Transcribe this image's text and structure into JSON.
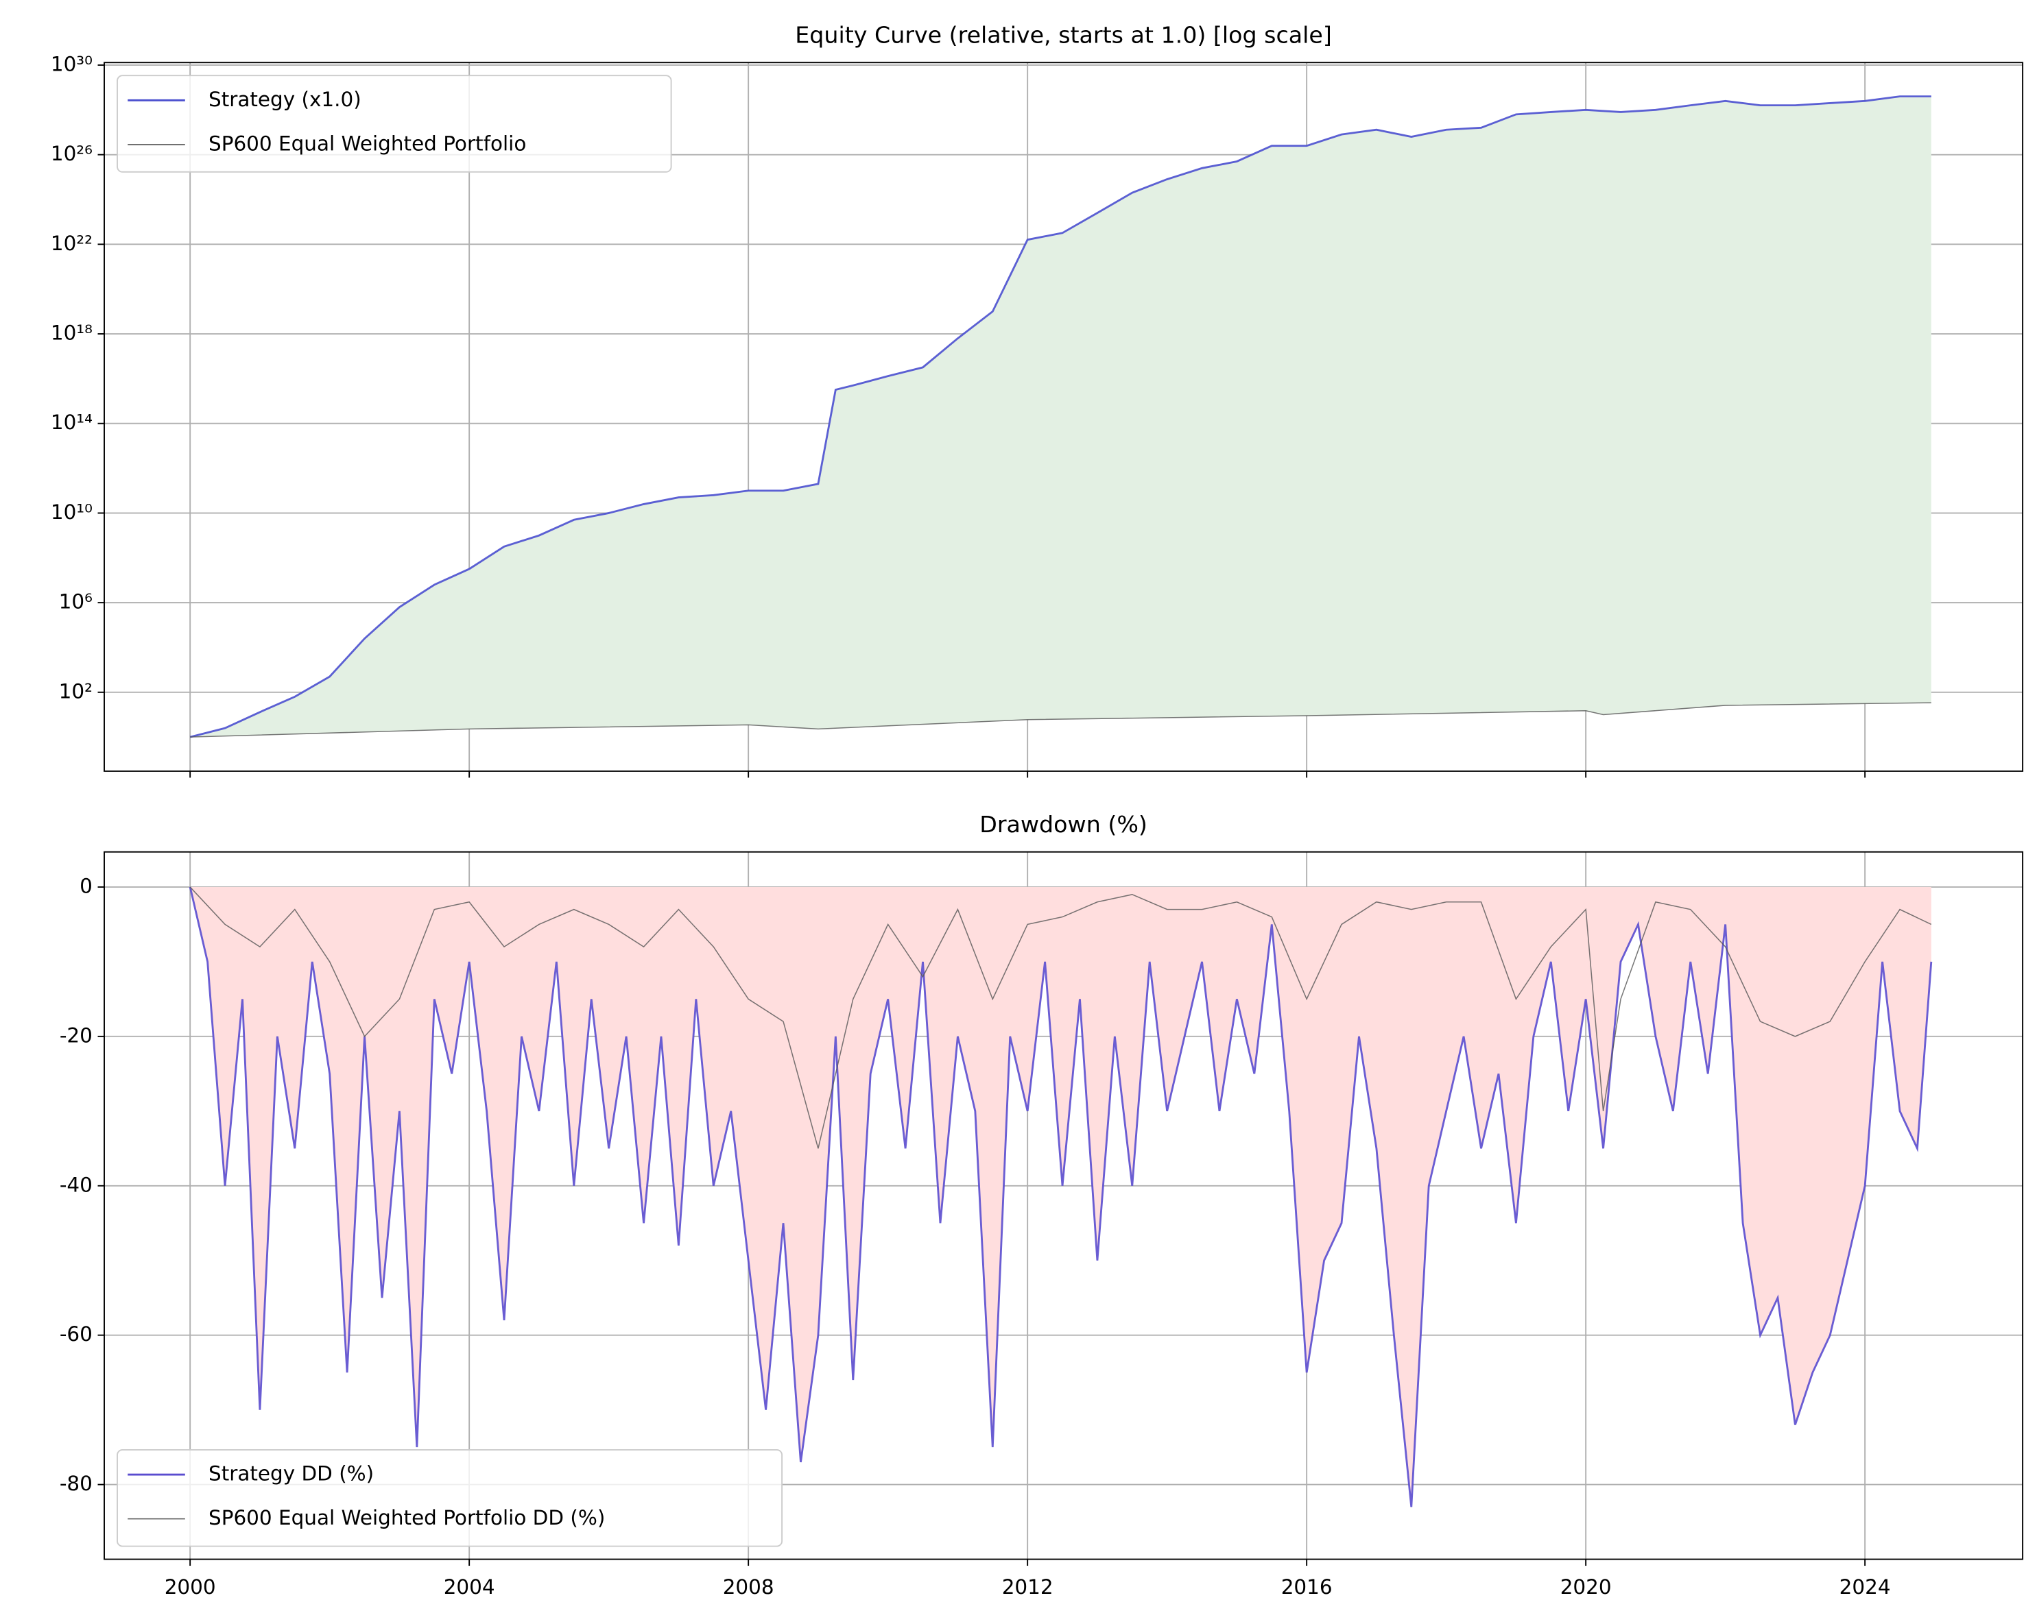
{
  "chart_data": [
    {
      "type": "line",
      "title": "Equity Curve (relative, starts at 1.0) [log scale]",
      "log_scale": true,
      "grid": true,
      "legend": "upper left",
      "fill_color": "#e3f0e3",
      "ylim": [
        0.03,
        1.3e+30
      ],
      "yticks": [
        {
          "value": 100,
          "label": "10²"
        },
        {
          "value": 1000000.0,
          "label": "10⁶"
        },
        {
          "value": 10000000000.0,
          "label": "10¹⁰"
        },
        {
          "value": 100000000000000.0,
          "label": "10¹⁴"
        },
        {
          "value": 1e+18,
          "label": "10¹⁸"
        },
        {
          "value": 1e+22,
          "label": "10²²"
        },
        {
          "value": 1e+26,
          "label": "10²⁶"
        },
        {
          "value": 1e+30,
          "label": "10³⁰"
        }
      ],
      "series": [
        {
          "name": "Strategy (x1.0)",
          "color": "#4a4fcf",
          "x": [
            2000,
            2000.5,
            2001,
            2001.5,
            2002,
            2002.5,
            2003,
            2003.5,
            2004,
            2004.5,
            2005,
            2005.5,
            2006,
            2006.5,
            2007,
            2007.5,
            2008,
            2008.5,
            2009,
            2009.25,
            2009.5,
            2010,
            2010.5,
            2011,
            2011.5,
            2012,
            2012.5,
            2013,
            2013.5,
            2014,
            2014.5,
            2015,
            2015.5,
            2016,
            2016.5,
            2017,
            2017.5,
            2018,
            2018.5,
            2019,
            2019.5,
            2020,
            2020.5,
            2021,
            2021.5,
            2022,
            2022.5,
            2023,
            2023.5,
            2024,
            2024.5,
            2024.95
          ],
          "values": [
            1,
            2.5,
            13,
            63,
            500,
            25000,
            630000,
            6300000,
            32000000,
            320000000,
            1000000000.0,
            5000000000.0,
            10000000000.0,
            25000000000.0,
            50000000000.0,
            63000000000.0,
            100000000000.0,
            100000000000.0,
            200000000000.0,
            3200000000000000.0,
            5000000000000000.0,
            1.3e+16,
            3.2e+16,
            6.3e+17,
            1e+19,
            1.6e+22,
            3.2e+22,
            2.5e+23,
            2e+24,
            8e+24,
            2.5e+25,
            5e+25,
            2.5e+26,
            2.5e+26,
            8e+26,
            1.3e+27,
            6.3e+26,
            1.3e+27,
            1.6e+27,
            6.3e+27,
            8e+27,
            1e+28,
            8e+27,
            1e+28,
            1.6e+28,
            2.5e+28,
            1.6e+28,
            1.6e+28,
            2e+28,
            2.5e+28,
            4e+28,
            4e+28
          ]
        },
        {
          "name": "SP600 Equal Weighted Portfolio",
          "color": "#555555",
          "x": [
            2000,
            2004,
            2008,
            2009,
            2012,
            2016,
            2020,
            2020.25,
            2022,
            2024.95
          ],
          "values": [
            1,
            2.3,
            3.5,
            2.3,
            6,
            9,
            15,
            10,
            26,
            34
          ]
        }
      ]
    },
    {
      "type": "line",
      "title": "Drawdown (%)",
      "grid": true,
      "legend": "lower left",
      "fill_color": "#ffdede",
      "xlim": [
        1998.77,
        2026.26
      ],
      "xticks": [
        2000,
        2004,
        2008,
        2012,
        2016,
        2020,
        2024
      ],
      "ylim": [
        -90,
        4.7
      ],
      "yticks": [
        -80,
        -60,
        -40,
        -20,
        0
      ],
      "series": [
        {
          "name": "Strategy DD (%)",
          "color": "#5a4ccf",
          "x": [
            2000,
            2000.25,
            2000.5,
            2000.75,
            2001,
            2001.25,
            2001.5,
            2001.75,
            2002,
            2002.25,
            2002.5,
            2002.75,
            2003,
            2003.25,
            2003.5,
            2003.75,
            2004,
            2004.25,
            2004.5,
            2004.75,
            2005,
            2005.25,
            2005.5,
            2005.75,
            2006,
            2006.25,
            2006.5,
            2006.75,
            2007,
            2007.25,
            2007.5,
            2007.75,
            2008,
            2008.25,
            2008.5,
            2008.75,
            2009,
            2009.25,
            2009.5,
            2009.75,
            2010,
            2010.25,
            2010.5,
            2010.75,
            2011,
            2011.25,
            2011.5,
            2011.75,
            2012,
            2012.25,
            2012.5,
            2012.75,
            2013,
            2013.25,
            2013.5,
            2013.75,
            2014,
            2014.25,
            2014.5,
            2014.75,
            2015,
            2015.25,
            2015.5,
            2015.75,
            2016,
            2016.25,
            2016.5,
            2016.75,
            2017,
            2017.25,
            2017.5,
            2017.75,
            2018,
            2018.25,
            2018.5,
            2018.75,
            2019,
            2019.25,
            2019.5,
            2019.75,
            2020,
            2020.25,
            2020.5,
            2020.75,
            2021,
            2021.25,
            2021.5,
            2021.75,
            2022,
            2022.25,
            2022.5,
            2022.75,
            2023,
            2023.25,
            2023.5,
            2023.75,
            2024,
            2024.25,
            2024.5,
            2024.75,
            2024.95
          ],
          "values": [
            0,
            -10,
            -40,
            -15,
            -70,
            -20,
            -35,
            -10,
            -25,
            -65,
            -20,
            -55,
            -30,
            -75,
            -15,
            -25,
            -10,
            -30,
            -58,
            -20,
            -30,
            -10,
            -40,
            -15,
            -35,
            -20,
            -45,
            -20,
            -48,
            -15,
            -40,
            -30,
            -50,
            -70,
            -45,
            -77,
            -60,
            -20,
            -66,
            -25,
            -15,
            -35,
            -10,
            -45,
            -20,
            -30,
            -75,
            -20,
            -30,
            -10,
            -40,
            -15,
            -50,
            -20,
            -40,
            -10,
            -30,
            -20,
            -10,
            -30,
            -15,
            -25,
            -5,
            -30,
            -65,
            -50,
            -45,
            -20,
            -35,
            -60,
            -83,
            -40,
            -30,
            -20,
            -35,
            -25,
            -45,
            -20,
            -10,
            -30,
            -15,
            -35,
            -10,
            -5,
            -20,
            -30,
            -10,
            -25,
            -5,
            -45,
            -60,
            -55,
            -72,
            -65,
            -60,
            -50,
            -40,
            -10,
            -30,
            -35,
            -10
          ]
        },
        {
          "name": "SP600 Equal Weighted Portfolio DD (%)",
          "color": "#555555",
          "x": [
            2000,
            2000.5,
            2001,
            2001.5,
            2002,
            2002.5,
            2003,
            2003.5,
            2004,
            2004.5,
            2005,
            2005.5,
            2006,
            2006.5,
            2007,
            2007.5,
            2008,
            2008.5,
            2009,
            2009.5,
            2010,
            2010.5,
            2011,
            2011.5,
            2012,
            2012.5,
            2013,
            2013.5,
            2014,
            2014.5,
            2015,
            2015.5,
            2016,
            2016.5,
            2017,
            2017.5,
            2018,
            2018.5,
            2019,
            2019.5,
            2020,
            2020.25,
            2020.5,
            2021,
            2021.5,
            2022,
            2022.5,
            2023,
            2023.5,
            2024,
            2024.5,
            2024.95
          ],
          "values": [
            0,
            -5,
            -8,
            -3,
            -10,
            -20,
            -15,
            -3,
            -2,
            -8,
            -5,
            -3,
            -5,
            -8,
            -3,
            -8,
            -15,
            -18,
            -35,
            -15,
            -5,
            -12,
            -3,
            -15,
            -5,
            -4,
            -2,
            -1,
            -3,
            -3,
            -2,
            -4,
            -15,
            -5,
            -2,
            -3,
            -2,
            -2,
            -15,
            -8,
            -3,
            -30,
            -15,
            -2,
            -3,
            -8,
            -18,
            -20,
            -18,
            -10,
            -3,
            -5
          ]
        }
      ]
    }
  ]
}
